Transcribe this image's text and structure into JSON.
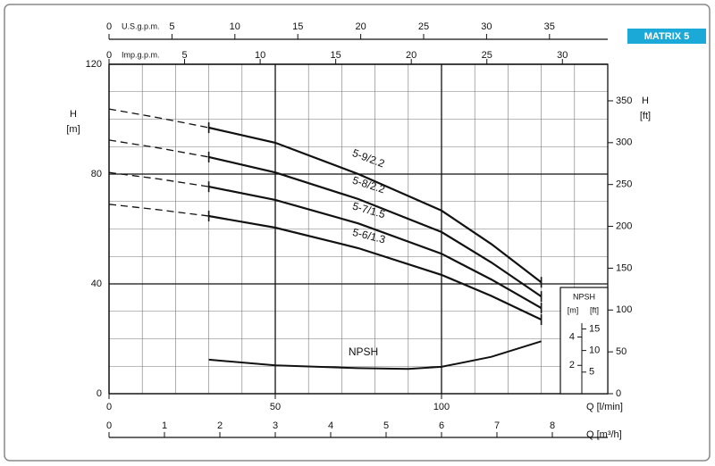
{
  "brand": "MATRIX 5",
  "chart_data": {
    "type": "line",
    "xlim": [
      0,
      150
    ],
    "xticks": [
      0,
      50,
      100
    ],
    "xlabel": "Q [l/min]",
    "x_axes": [
      {
        "label": "Q [m³/h]",
        "position": "bottom",
        "lim": [
          0,
          9
        ],
        "ticks": [
          0,
          1,
          2,
          3,
          4,
          5,
          6,
          7,
          8
        ]
      },
      {
        "label": "U.S.g.p.m.",
        "position": "top",
        "lim": [
          0,
          39.63
        ],
        "ticks": [
          0,
          5,
          10,
          15,
          20,
          25,
          30,
          35
        ]
      },
      {
        "label": "Imp.g.p.m.",
        "position": "top",
        "lim": [
          0,
          33
        ],
        "ticks": [
          0,
          5,
          10,
          15,
          20,
          25,
          30
        ]
      }
    ],
    "ylim": [
      0,
      120
    ],
    "yticks": [
      0,
      40,
      80,
      120
    ],
    "ylabel": "H",
    "yunit": "[m]",
    "y2lim": [
      0,
      393.7
    ],
    "y2ticks": [
      0,
      50,
      100,
      150,
      200,
      250,
      300,
      350
    ],
    "y2label": "H",
    "y2unit": "[ft]",
    "minor_grid": [
      10,
      10
    ],
    "series": [
      {
        "name": "5-9/2.2",
        "color": "#111111",
        "segments": [
          {
            "style": "dashed",
            "x": [
              0,
              15,
              30
            ],
            "values": [
              103.7,
              100.5,
              96.9
            ]
          },
          {
            "style": "solid",
            "x": [
              30,
              50,
              75,
              100,
              115,
              130
            ],
            "values": [
              96.9,
              91.4,
              80,
              66.7,
              54.5,
              40.6
            ]
          }
        ]
      },
      {
        "name": "5-8/2.2",
        "color": "#111111",
        "segments": [
          {
            "style": "dashed",
            "x": [
              0,
              15,
              30
            ],
            "values": [
              92.4,
              89.5,
              86.2
            ]
          },
          {
            "style": "solid",
            "x": [
              30,
              50,
              75,
              100,
              115,
              130
            ],
            "values": [
              86.2,
              80.6,
              70.9,
              58.9,
              47.8,
              35.4
            ]
          }
        ]
      },
      {
        "name": "5-7/1.5",
        "color": "#111111",
        "segments": [
          {
            "style": "dashed",
            "x": [
              0,
              15,
              30
            ],
            "values": [
              80.6,
              78.2,
              75.4
            ]
          },
          {
            "style": "solid",
            "x": [
              30,
              50,
              75,
              100,
              115,
              130
            ],
            "values": [
              75.4,
              70.6,
              62,
              51,
              41.6,
              31.2
            ]
          }
        ]
      },
      {
        "name": "5-6/1.3",
        "color": "#111111",
        "segments": [
          {
            "style": "dashed",
            "x": [
              0,
              15,
              30
            ],
            "values": [
              69,
              67,
              64.7
            ]
          },
          {
            "style": "solid",
            "x": [
              30,
              50,
              75,
              100,
              115,
              130
            ],
            "values": [
              64.7,
              60.5,
              53,
              43.3,
              35.6,
              27
            ]
          }
        ]
      }
    ],
    "npsh": {
      "name": "NPSH",
      "color": "#111111",
      "x": [
        30,
        50,
        75,
        90,
        100,
        115,
        130
      ],
      "values": [
        2.4,
        2.0,
        1.8,
        1.75,
        1.9,
        2.6,
        3.7
      ]
    },
    "inset": {
      "title": "NPSH",
      "unit": "[m]",
      "unit2": "[ft]",
      "lim": [
        0,
        7.5
      ],
      "ticks": [
        2,
        4
      ],
      "lim2": [
        0,
        24.6
      ],
      "ticks2": [
        5,
        10,
        15
      ]
    }
  }
}
